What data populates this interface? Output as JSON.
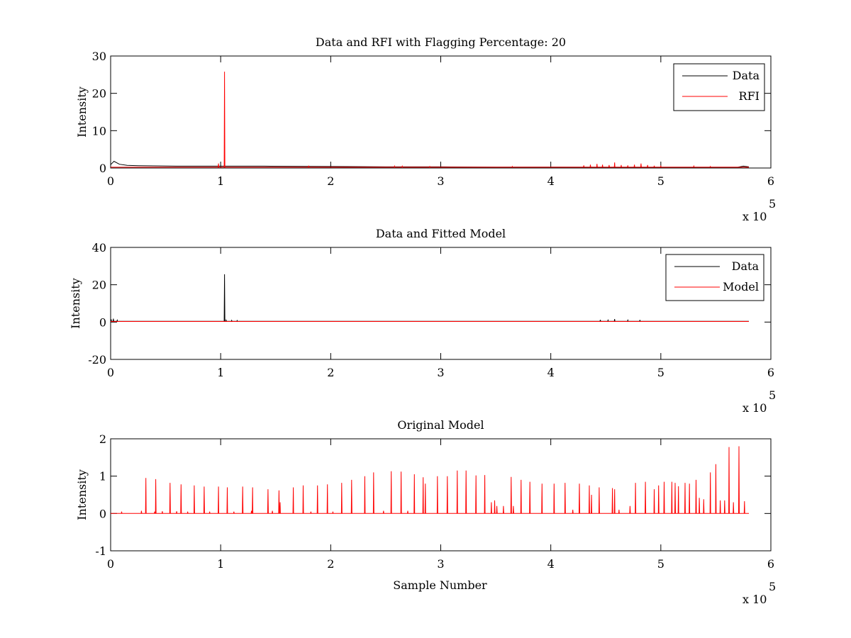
{
  "chart_data": [
    {
      "type": "line",
      "title": "Data and RFI with Flagging Percentage: 20",
      "xlabel": "",
      "ylabel": "Intensity",
      "xlim": [
        0,
        600000
      ],
      "ylim": [
        0,
        30
      ],
      "xticks": [
        "0",
        "1",
        "2",
        "3",
        "4",
        "5",
        "6"
      ],
      "yticks": [
        "0",
        "10",
        "20",
        "30"
      ],
      "x_multiplier": {
        "base": "x 10",
        "exponent": "5"
      },
      "legend_position": "top-right",
      "colors": {
        "Data": "#000000",
        "RFI": "#ff0000"
      },
      "series": [
        {
          "name": "Data",
          "color": "#000000",
          "points": [
            [
              0,
              0.9
            ],
            [
              3000,
              1.8
            ],
            [
              8000,
              1.0
            ],
            [
              15000,
              0.7
            ],
            [
              25000,
              0.6
            ],
            [
              60000,
              0.5
            ],
            [
              100000,
              0.5
            ],
            [
              140000,
              0.5
            ],
            [
              200000,
              0.4
            ],
            [
              250000,
              0.3
            ],
            [
              300000,
              0.3
            ],
            [
              350000,
              0.25
            ],
            [
              400000,
              0.25
            ],
            [
              450000,
              0.2
            ],
            [
              500000,
              0.2
            ],
            [
              550000,
              0.2
            ],
            [
              570000,
              0.2
            ],
            [
              575000,
              0.5
            ],
            [
              580000,
              0.3
            ]
          ]
        },
        {
          "name": "RFI",
          "color": "#ff0000",
          "baseline": 0.2,
          "spikes": [
            [
              103500,
              25.8
            ],
            [
              98000,
              1.2
            ],
            [
              180000,
              0.6
            ],
            [
              258000,
              0.5
            ],
            [
              265000,
              0.5
            ],
            [
              290000,
              0.4
            ],
            [
              365000,
              0.4
            ],
            [
              430000,
              0.7
            ],
            [
              436000,
              0.9
            ],
            [
              442000,
              1.1
            ],
            [
              447000,
              0.9
            ],
            [
              453000,
              0.8
            ],
            [
              458000,
              1.5
            ],
            [
              464000,
              0.8
            ],
            [
              470000,
              0.7
            ],
            [
              476000,
              0.9
            ],
            [
              482000,
              1.2
            ],
            [
              488000,
              0.8
            ],
            [
              494000,
              0.6
            ],
            [
              500000,
              0.5
            ],
            [
              530000,
              0.5
            ],
            [
              545000,
              0.4
            ]
          ]
        }
      ]
    },
    {
      "type": "line",
      "title": "Data and Fitted Model",
      "xlabel": "",
      "ylabel": "Intensity",
      "xlim": [
        0,
        600000
      ],
      "ylim": [
        -20,
        40
      ],
      "xticks": [
        "0",
        "1",
        "2",
        "3",
        "4",
        "5",
        "6"
      ],
      "yticks": [
        "-20",
        "0",
        "20",
        "40"
      ],
      "x_multiplier": {
        "base": "x 10",
        "exponent": "5"
      },
      "legend_position": "top-right",
      "colors": {
        "Data": "#000000",
        "Model": "#ff0000"
      },
      "series": [
        {
          "name": "Data",
          "color": "#000000",
          "baseline": 0.4,
          "spikes": [
            [
              500,
              1.5
            ],
            [
              2500,
              1.8
            ],
            [
              6000,
              1.0
            ],
            [
              103500,
              25.6
            ],
            [
              105000,
              1.0
            ],
            [
              110000,
              0.9
            ],
            [
              115000,
              0.8
            ],
            [
              445000,
              1.2
            ],
            [
              452000,
              1.0
            ],
            [
              458000,
              1.6
            ],
            [
              470000,
              1.0
            ],
            [
              481000,
              1.1
            ]
          ]
        },
        {
          "name": "Model",
          "color": "#ff0000",
          "points": [
            [
              0,
              0.3
            ],
            [
              580000,
              0.3
            ]
          ]
        }
      ]
    },
    {
      "type": "line",
      "title": "Original Model",
      "xlabel": "Sample Number",
      "ylabel": "Intensity",
      "xlim": [
        0,
        600000
      ],
      "ylim": [
        -1,
        2
      ],
      "xticks": [
        "0",
        "1",
        "2",
        "3",
        "4",
        "5",
        "6"
      ],
      "yticks": [
        "-1",
        "0",
        "1",
        "2"
      ],
      "x_multiplier": {
        "base": "x 10",
        "exponent": "5"
      },
      "colors": {
        "Model": "#ff0000"
      },
      "series": [
        {
          "name": "",
          "color": "#ff0000",
          "baseline": 0,
          "spikes": [
            [
              10000,
              0.05
            ],
            [
              28000,
              0.07
            ],
            [
              32000,
              0.95
            ],
            [
              40000,
              0.05
            ],
            [
              41000,
              0.92
            ],
            [
              47000,
              0.06
            ],
            [
              54000,
              0.82
            ],
            [
              60000,
              0.06
            ],
            [
              64000,
              0.78
            ],
            [
              70000,
              0.05
            ],
            [
              76000,
              0.75
            ],
            [
              85000,
              0.72
            ],
            [
              90000,
              0.05
            ],
            [
              98000,
              0.72
            ],
            [
              106000,
              0.7
            ],
            [
              112000,
              0.05
            ],
            [
              120000,
              0.72
            ],
            [
              128000,
              0.07
            ],
            [
              129000,
              0.7
            ],
            [
              143000,
              0.65
            ],
            [
              147000,
              0.07
            ],
            [
              153000,
              0.62
            ],
            [
              154000,
              0.3
            ],
            [
              166000,
              0.7
            ],
            [
              175000,
              0.75
            ],
            [
              182000,
              0.05
            ],
            [
              188000,
              0.75
            ],
            [
              197000,
              0.78
            ],
            [
              202000,
              0.05
            ],
            [
              210000,
              0.82
            ],
            [
              219000,
              0.9
            ],
            [
              231000,
              1.0
            ],
            [
              239000,
              1.1
            ],
            [
              248000,
              0.07
            ],
            [
              255000,
              1.13
            ],
            [
              264000,
              1.12
            ],
            [
              270000,
              0.07
            ],
            [
              276000,
              1.05
            ],
            [
              284000,
              0.97
            ],
            [
              286000,
              0.8
            ],
            [
              297000,
              1.0
            ],
            [
              306000,
              1.0
            ],
            [
              315000,
              1.15
            ],
            [
              323000,
              1.15
            ],
            [
              332000,
              1.02
            ],
            [
              340000,
              1.03
            ],
            [
              346000,
              0.3
            ],
            [
              349000,
              0.35
            ],
            [
              351000,
              0.2
            ],
            [
              357000,
              0.2
            ],
            [
              364000,
              0.98
            ],
            [
              366000,
              0.2
            ],
            [
              373000,
              0.9
            ],
            [
              381000,
              0.85
            ],
            [
              392000,
              0.8
            ],
            [
              403000,
              0.8
            ],
            [
              413000,
              0.82
            ],
            [
              420000,
              0.1
            ],
            [
              426000,
              0.8
            ],
            [
              435000,
              0.75
            ],
            [
              437000,
              0.5
            ],
            [
              444000,
              0.7
            ],
            [
              456000,
              0.68
            ],
            [
              458000,
              0.65
            ],
            [
              462000,
              0.1
            ],
            [
              472000,
              0.2
            ],
            [
              477000,
              0.82
            ],
            [
              486000,
              0.85
            ],
            [
              494000,
              0.65
            ],
            [
              498000,
              0.75
            ],
            [
              503000,
              0.85
            ],
            [
              510000,
              0.85
            ],
            [
              513000,
              0.82
            ],
            [
              516000,
              0.73
            ],
            [
              522000,
              0.82
            ],
            [
              526000,
              0.8
            ],
            [
              532000,
              0.9
            ],
            [
              535000,
              0.42
            ],
            [
              539000,
              0.38
            ],
            [
              545000,
              1.1
            ],
            [
              550000,
              1.32
            ],
            [
              554000,
              0.35
            ],
            [
              558000,
              0.35
            ],
            [
              562000,
              1.78
            ],
            [
              566000,
              0.3
            ],
            [
              571000,
              1.8
            ],
            [
              576000,
              0.33
            ]
          ]
        }
      ]
    }
  ]
}
